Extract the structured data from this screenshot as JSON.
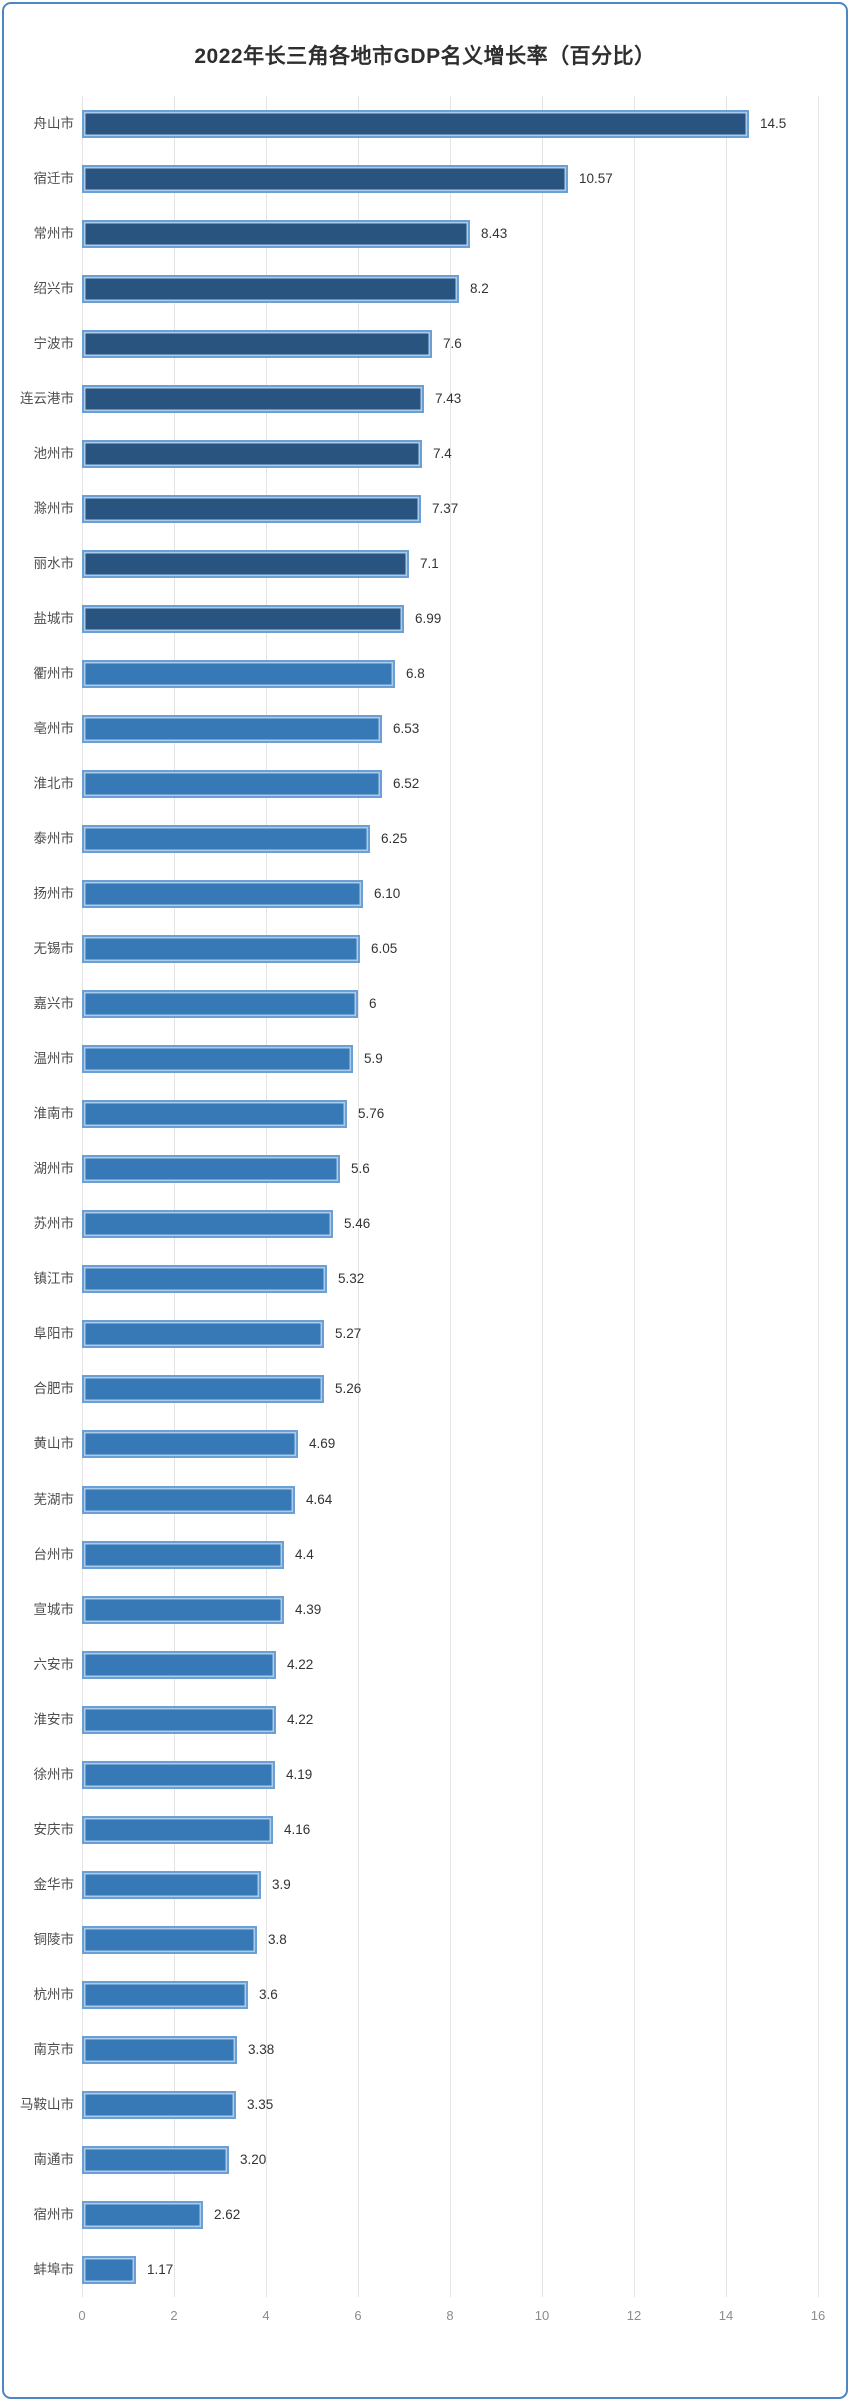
{
  "chart_data": {
    "type": "bar",
    "orientation": "horizontal",
    "title": "2022年长三角各地市GDP名义增长率（百分比）",
    "categories": [
      "舟山市",
      "宿迁市",
      "常州市",
      "绍兴市",
      "宁波市",
      "连云港市",
      "池州市",
      "滁州市",
      "丽水市",
      "盐城市",
      "衢州市",
      "亳州市",
      "淮北市",
      "泰州市",
      "扬州市",
      "无锡市",
      "嘉兴市",
      "温州市",
      "淮南市",
      "湖州市",
      "苏州市",
      "镇江市",
      "阜阳市",
      "合肥市",
      "黄山市",
      "芜湖市",
      "台州市",
      "宣城市",
      "六安市",
      "淮安市",
      "徐州市",
      "安庆市",
      "金华市",
      "铜陵市",
      "杭州市",
      "南京市",
      "马鞍山市",
      "南通市",
      "宿州市",
      "蚌埠市"
    ],
    "values": [
      14.5,
      10.57,
      8.43,
      8.2,
      7.6,
      7.43,
      7.4,
      7.37,
      7.1,
      6.99,
      6.8,
      6.53,
      6.52,
      6.25,
      6.1,
      6.05,
      6,
      5.9,
      5.76,
      5.6,
      5.46,
      5.32,
      5.27,
      5.26,
      4.69,
      4.64,
      4.4,
      4.39,
      4.22,
      4.22,
      4.19,
      4.16,
      3.9,
      3.8,
      3.6,
      3.38,
      3.35,
      3.2,
      2.62,
      1.17
    ],
    "value_labels": [
      "14.5",
      "10.57",
      "8.43",
      "8.2",
      "7.6",
      "7.43",
      "7.4",
      "7.37",
      "7.1",
      "6.99",
      "6.8",
      "6.53",
      "6.52",
      "6.25",
      "6.10",
      "6.05",
      "6",
      "5.9",
      "5.76",
      "5.6",
      "5.46",
      "5.32",
      "5.27",
      "5.26",
      "4.69",
      "4.64",
      "4.4",
      "4.39",
      "4.22",
      "4.22",
      "4.19",
      "4.16",
      "3.9",
      "3.8",
      "3.6",
      "3.38",
      "3.35",
      "3.20",
      "2.62",
      "1.17"
    ],
    "bar_groups": [
      "dark",
      "dark",
      "dark",
      "dark",
      "dark",
      "dark",
      "dark",
      "dark",
      "dark",
      "dark",
      "light",
      "light",
      "light",
      "light",
      "light",
      "light",
      "light",
      "light",
      "light",
      "light",
      "light",
      "light",
      "light",
      "light",
      "light",
      "light",
      "light",
      "light",
      "light",
      "light",
      "light",
      "light",
      "light",
      "light",
      "light",
      "light",
      "light",
      "light",
      "light",
      "light"
    ],
    "colors": {
      "dark_fill": "#2A5480",
      "light_fill": "#3779B7",
      "bar_border": "#6CA0D4",
      "bar_inner_highlight": "#AACBEA",
      "gridline": "#E4E4E4",
      "tick_text": "#8C8C8C",
      "category_text": "#4D4D4D",
      "value_text": "#333333",
      "title_text": "#2E2E2E",
      "frame_border": "#4C86C4"
    },
    "x_ticks": [
      "0",
      "2",
      "4",
      "6",
      "8",
      "10",
      "12",
      "14",
      "16"
    ],
    "xlim": [
      0,
      16
    ],
    "grid": "vertical",
    "legend": "none",
    "value_label_position": "outside-end"
  }
}
